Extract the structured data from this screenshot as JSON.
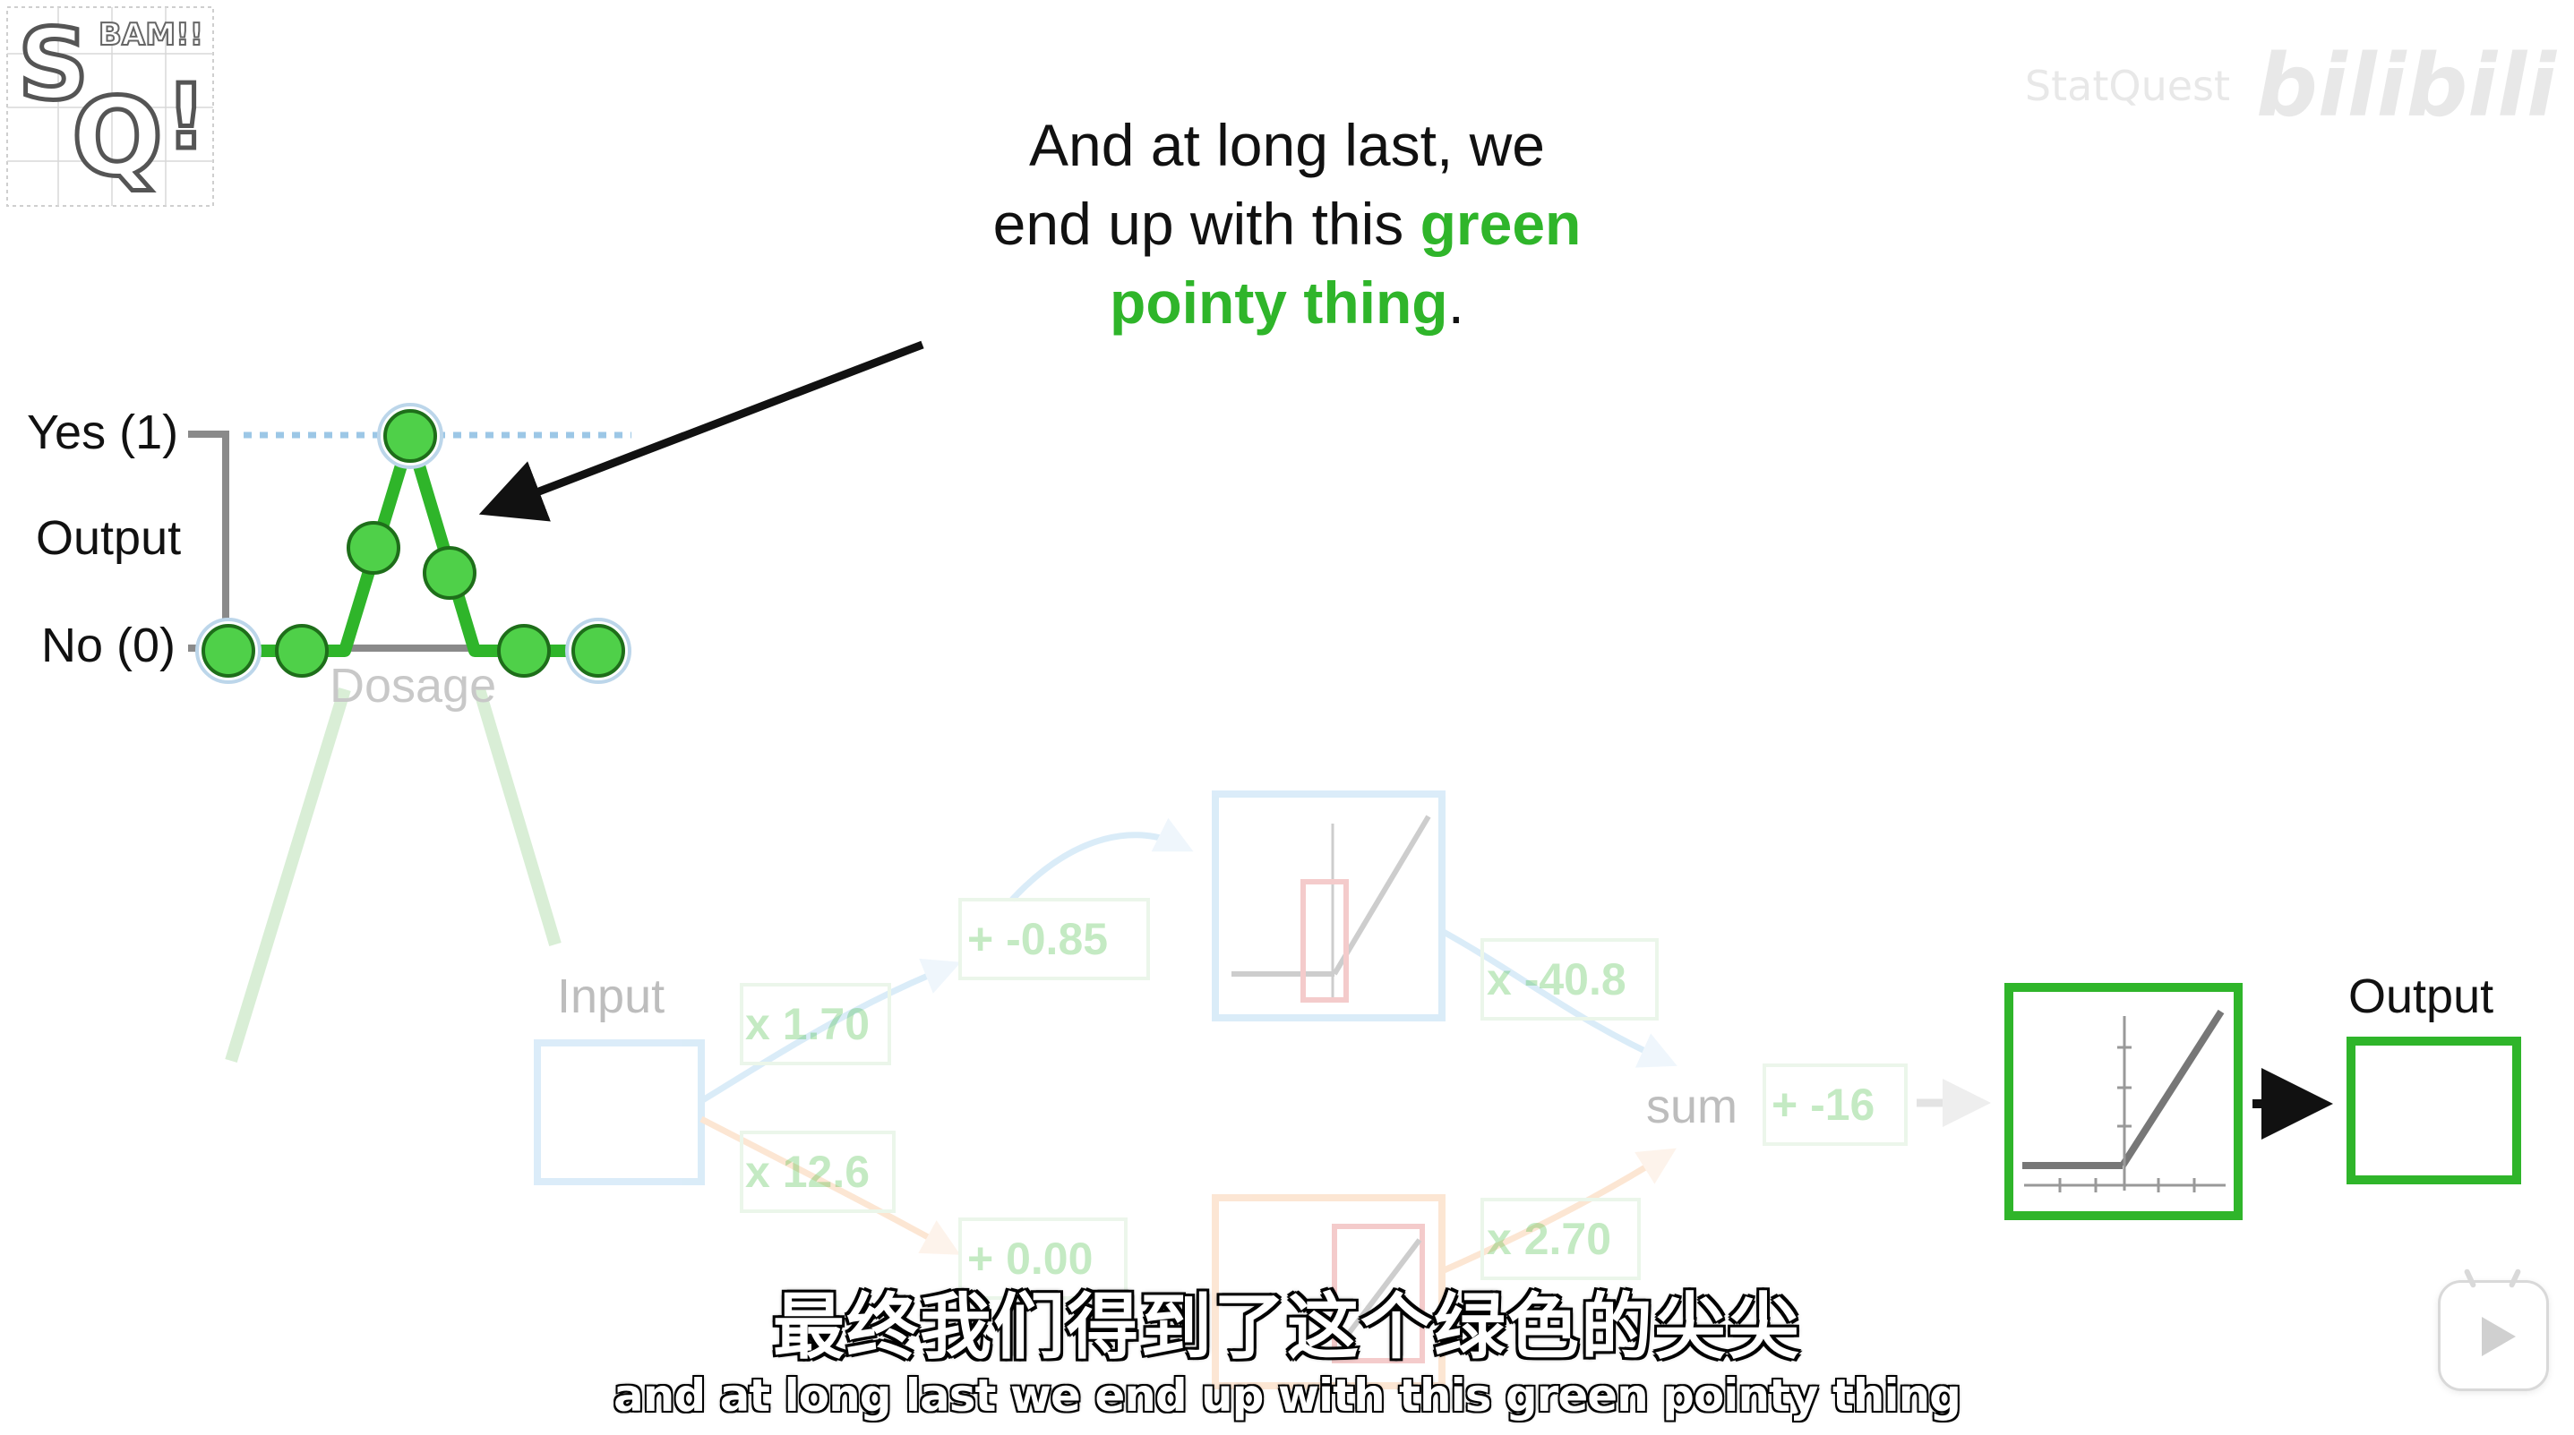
{
  "caption": {
    "line1": "And at long last, we",
    "line2_plain": "end up with this ",
    "line2_green": "green",
    "line3_green": "pointy thing",
    "line3_plain": "."
  },
  "graph": {
    "y_top_label": "Yes (1)",
    "y_mid_label": "Output",
    "y_bottom_label": "No (0)",
    "x_label": "Dosage"
  },
  "network": {
    "input_label": "Input",
    "w1_upper": "x 1.70",
    "b1_upper": "+ -0.85",
    "w2_upper": "x -40.8",
    "w1_lower": "x 12.6",
    "b1_lower": "+ 0.00",
    "w2_lower": "x 2.70",
    "sum_label": "sum",
    "final_bias": "+ -16",
    "output_label": "Output"
  },
  "subtitles": {
    "cn": "最终我们得到了这个绿色的尖尖",
    "en": "and at long last we end up with this green pointy thing"
  },
  "watermark": {
    "channel": "StatQuest",
    "site": "bilibili"
  },
  "colors": {
    "green": "#2fb52a",
    "blue": "#8ec5ec",
    "orange": "#f6b27a",
    "gray": "#888888"
  },
  "icons": {
    "logo": "statquest-logo",
    "play": "play-icon"
  }
}
